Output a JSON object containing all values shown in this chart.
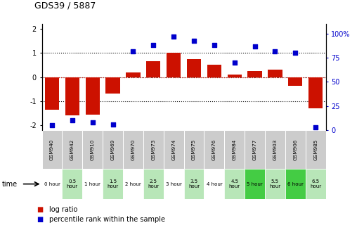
{
  "title": "GDS39 / 5887",
  "samples": [
    "GSM940",
    "GSM942",
    "GSM910",
    "GSM969",
    "GSM970",
    "GSM973",
    "GSM974",
    "GSM975",
    "GSM976",
    "GSM984",
    "GSM977",
    "GSM903",
    "GSM906",
    "GSM985"
  ],
  "time_labels": [
    "0 hour",
    "0.5\nhour",
    "1 hour",
    "1.5\nhour",
    "2 hour",
    "2.5\nhour",
    "3 hour",
    "3.5\nhour",
    "4 hour",
    "4.5\nhour",
    "5 hour",
    "5.5\nhour",
    "6 hour",
    "6.5\nhour"
  ],
  "log_ratio": [
    -1.35,
    -1.6,
    -1.55,
    -0.7,
    0.2,
    0.65,
    1.0,
    0.75,
    0.5,
    0.1,
    0.25,
    0.3,
    -0.35,
    -1.3
  ],
  "percentile": [
    5,
    10,
    8,
    6,
    82,
    88,
    97,
    93,
    88,
    70,
    87,
    82,
    80,
    3
  ],
  "bar_color": "#cc1100",
  "dot_color": "#0000cc",
  "header_color": "#cccccc",
  "ylim_left": [
    -2.2,
    2.2
  ],
  "ylim_right": [
    0,
    110
  ],
  "yticks_left": [
    -2,
    -1,
    0,
    1,
    2
  ],
  "yticks_right": [
    0,
    25,
    50,
    75,
    100
  ],
  "yticklabels_right": [
    "0",
    "25",
    "50",
    "75",
    "100%"
  ],
  "legend_red": "log ratio",
  "legend_blue": "percentile rank within the sample",
  "time_bg": [
    "#ffffff",
    "#b8e6b8",
    "#ffffff",
    "#b8e6b8",
    "#ffffff",
    "#b8e6b8",
    "#ffffff",
    "#b8e6b8",
    "#ffffff",
    "#b8e6b8",
    "#44cc44",
    "#b8e6b8",
    "#44cc44",
    "#b8e6b8"
  ]
}
